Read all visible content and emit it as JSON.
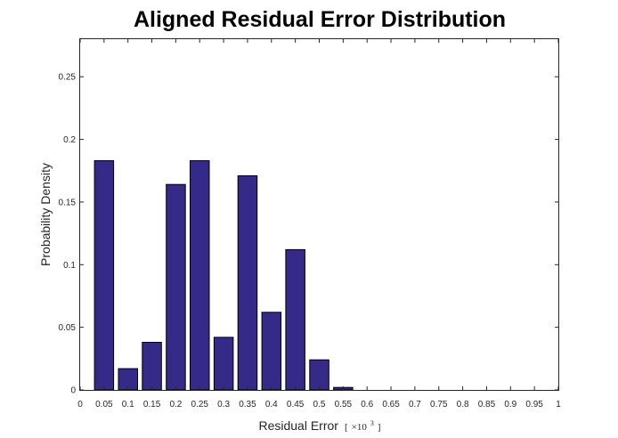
{
  "chart_data": {
    "type": "bar",
    "title": "Aligned Residual Error Distribution",
    "xlabel": "Residual Error",
    "xlabel_unit_prefix": "[",
    "xlabel_unit_times": "×10",
    "xlabel_unit_exp": "3",
    "xlabel_unit_suffix": "]",
    "ylabel": "Probability Density",
    "xlim": [
      0,
      1
    ],
    "ylim": [
      0,
      0.28
    ],
    "grid": false,
    "bar_color": "#352a87",
    "x_ticks": [
      "0",
      "0.05",
      "0.1",
      "0.15",
      "0.2",
      "0.25",
      "0.3",
      "0.35",
      "0.4",
      "0.45",
      "0.5",
      "0.55",
      "0.6",
      "0.65",
      "0.7",
      "0.75",
      "0.8",
      "0.85",
      "0.9",
      "0.95",
      "1"
    ],
    "y_ticks": [
      "0",
      "0.05",
      "0.1",
      "0.15",
      "0.2",
      "0.25"
    ],
    "x": [
      0.05,
      0.1,
      0.15,
      0.2,
      0.25,
      0.3,
      0.35,
      0.4,
      0.45,
      0.5,
      0.55
    ],
    "values": [
      0.183,
      0.017,
      0.038,
      0.164,
      0.183,
      0.042,
      0.171,
      0.062,
      0.112,
      0.024,
      0.002
    ]
  }
}
